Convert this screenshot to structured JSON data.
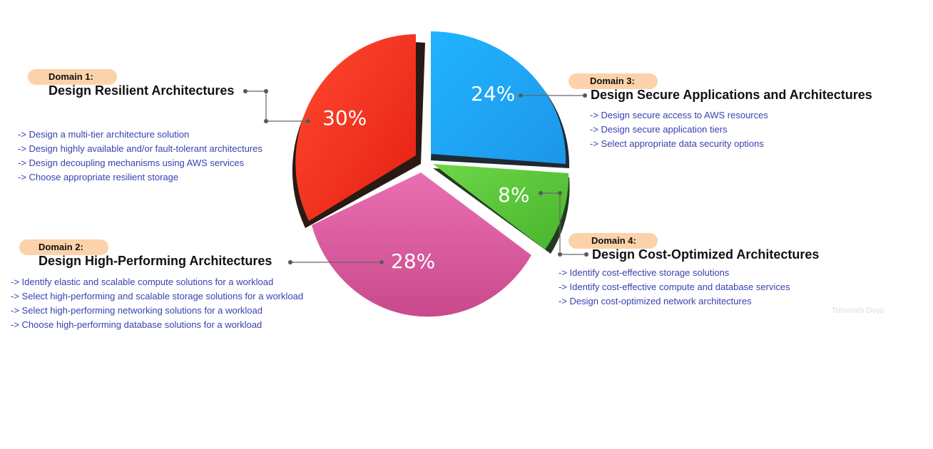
{
  "chart_data": {
    "type": "pie",
    "slices": [
      {
        "label": "Design Resilient Architectures",
        "value": 30,
        "color": "#f5301f"
      },
      {
        "label": "Design Secure Applications and Architectures",
        "value": 24,
        "color": "#22a8f5"
      },
      {
        "label": "Design Cost-Optimized Architectures",
        "value": 8,
        "color": "#5ecb3e"
      },
      {
        "label": "Design High-Performing Architectures",
        "value": 28,
        "color": "#e064a6"
      }
    ]
  },
  "domains": [
    {
      "badge": "Domain 1:",
      "title": "Design Resilient Architectures",
      "percent": "30%",
      "items": [
        "-> Design a multi-tier architecture solution",
        "-> Design highly available and/or fault-tolerant architectures",
        "-> Design decoupling mechanisms using AWS services",
        "-> Choose appropriate resilient storage"
      ]
    },
    {
      "badge": "Domain 2:",
      "title": "Design High-Performing Architectures",
      "percent": "28%",
      "items": [
        "-> Identify elastic and scalable compute solutions for a workload",
        "-> Select high-performing and scalable storage solutions for a workload",
        "-> Select high-performing networking solutions for a workload",
        "-> Choose high-performing database solutions for a workload"
      ]
    },
    {
      "badge": "Domain 3:",
      "title": "Design Secure Applications and Architectures",
      "percent": "24%",
      "items": [
        "-> Design secure access to AWS resources",
        "-> Design secure application tiers",
        "-> Select appropriate data security options"
      ]
    },
    {
      "badge": "Domain 4:",
      "title": "Design Cost-Optimized Architectures",
      "percent": "8%",
      "items": [
        "-> Identify cost-effective storage solutions",
        "-> Identify cost-effective compute and database services",
        "-> Design cost-optimized network architectures"
      ]
    }
  ],
  "watermark": "Tutorials Dojo"
}
